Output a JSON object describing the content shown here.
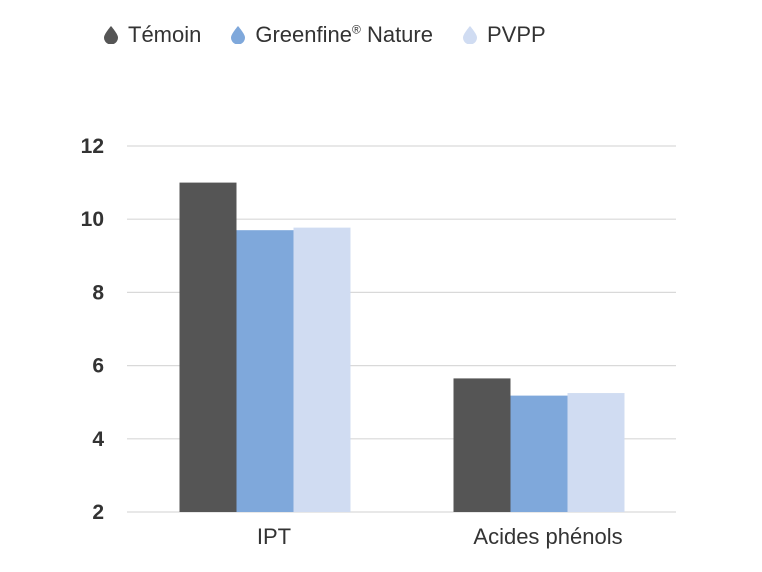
{
  "chart_data": {
    "type": "bar",
    "categories": [
      "IPT",
      "Acides phénols"
    ],
    "series": [
      {
        "name": "Témoin",
        "color": "#555555",
        "values": [
          11.0,
          5.65
        ]
      },
      {
        "name": "Greenfine® Nature",
        "color": "#7fa8db",
        "values": [
          9.7,
          5.18
        ]
      },
      {
        "name": "PVPP",
        "color": "#d0dcf2",
        "values": [
          9.77,
          5.25
        ]
      }
    ],
    "ylim": [
      2,
      12
    ],
    "yticks": [
      "2",
      "4",
      "6",
      "8",
      "10",
      "12"
    ],
    "grid": true,
    "legend_position": "top-left",
    "legend_icon": "drop-icon",
    "title": "",
    "xlabel": "",
    "ylabel": ""
  }
}
